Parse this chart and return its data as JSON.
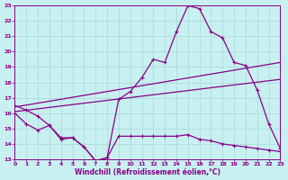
{
  "xlabel": "Windchill (Refroidissement éolien,°C)",
  "bg_color": "#c8f0f0",
  "grid_color": "#a8d8d8",
  "line_color": "#880088",
  "xlim": [
    0,
    23
  ],
  "ylim": [
    13,
    23
  ],
  "xticks": [
    0,
    1,
    2,
    3,
    4,
    5,
    6,
    7,
    8,
    9,
    10,
    11,
    12,
    13,
    14,
    15,
    16,
    17,
    18,
    19,
    20,
    21,
    22,
    23
  ],
  "yticks": [
    13,
    14,
    15,
    16,
    17,
    18,
    19,
    20,
    21,
    22,
    23
  ],
  "curve1_x": [
    0,
    1,
    2,
    3,
    4,
    5,
    6,
    7,
    8,
    9,
    10,
    11,
    12,
    13,
    14,
    15,
    16,
    17,
    18,
    19,
    20,
    21,
    22,
    23
  ],
  "curve1_y": [
    16.5,
    16.2,
    15.8,
    15.2,
    14.4,
    14.4,
    13.8,
    12.9,
    13.1,
    16.9,
    17.4,
    18.3,
    19.5,
    19.3,
    21.3,
    23.0,
    22.8,
    21.3,
    20.9,
    19.3,
    19.1,
    17.5,
    15.3,
    13.7
  ],
  "curve2_x": [
    0,
    1,
    2,
    3,
    4,
    5,
    6,
    7,
    8,
    9,
    10,
    11,
    12,
    13,
    14,
    15,
    16,
    17,
    18,
    19,
    20,
    21,
    22,
    23
  ],
  "curve2_y": [
    16.0,
    15.3,
    14.9,
    15.2,
    14.3,
    14.4,
    13.8,
    12.9,
    13.1,
    14.5,
    14.5,
    14.5,
    14.5,
    14.5,
    14.5,
    14.6,
    14.3,
    14.2,
    14.0,
    13.9,
    13.8,
    13.7,
    13.6,
    13.5
  ],
  "line1_x": [
    0,
    23
  ],
  "line1_y": [
    16.1,
    18.2
  ],
  "line2_x": [
    0,
    23
  ],
  "line2_y": [
    16.4,
    19.3
  ]
}
